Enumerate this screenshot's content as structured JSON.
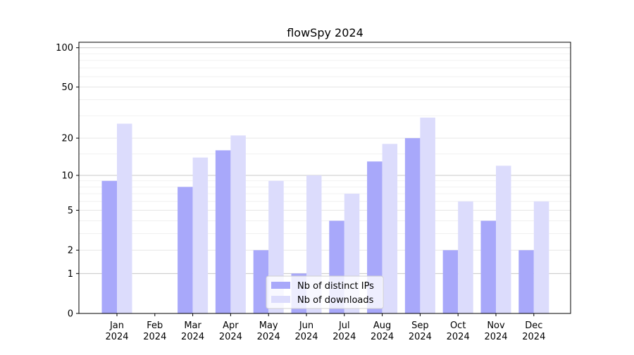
{
  "chart_data": {
    "type": "bar",
    "title": "flowSpy 2024",
    "xlabel": "",
    "ylabel": "",
    "yscale": "log(1+y)",
    "ylim": [
      0,
      110
    ],
    "yticks": [
      0,
      1,
      2,
      5,
      10,
      20,
      50,
      100
    ],
    "categories": [
      "Jan\n2024",
      "Feb\n2024",
      "Mar\n2024",
      "Apr\n2024",
      "May\n2024",
      "Jun\n2024",
      "Jul\n2024",
      "Aug\n2024",
      "Sep\n2024",
      "Oct\n2024",
      "Nov\n2024",
      "Dec\n2024"
    ],
    "series": [
      {
        "name": "Nb of distinct IPs",
        "color": "#a8a8fa",
        "values": [
          9,
          0,
          8,
          16,
          2,
          1,
          4,
          13,
          20,
          2,
          4,
          2
        ]
      },
      {
        "name": "Nb of downloads",
        "color": "#dcdcfc",
        "values": [
          26,
          0,
          14,
          21,
          9,
          10,
          7,
          18,
          29,
          6,
          12,
          6
        ]
      }
    ],
    "grid": true,
    "legend": "bottom-center"
  }
}
